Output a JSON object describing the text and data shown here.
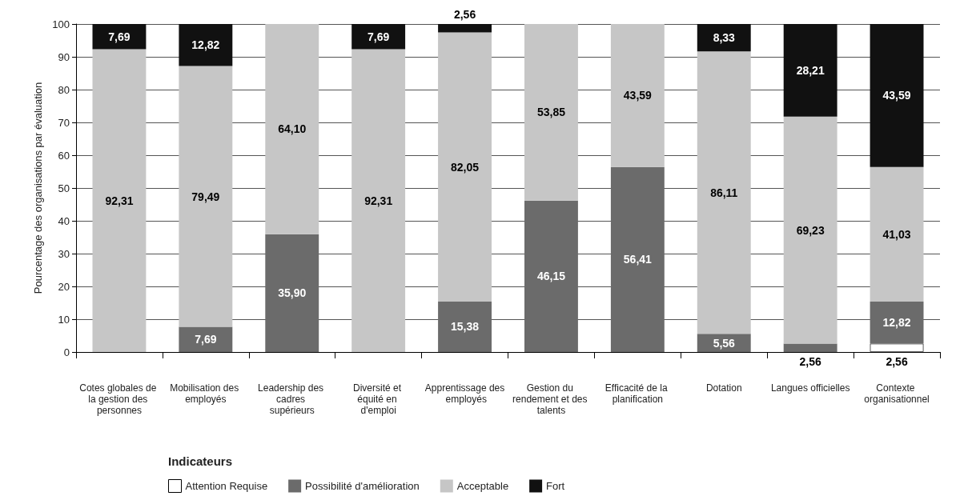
{
  "chart_data": {
    "type": "bar",
    "stacked": true,
    "ylabel": "Pourcentage des organisations par évaluation",
    "categories": [
      "Cotes globales de la gestion des personnes",
      "Mobilisation des employés",
      "Leadership des cadres supérieurs",
      "Diversité et équité en d'emploi",
      "Apprentissage des employés",
      "Gestion du rendement et des talents",
      "Efficacité de la planification",
      "Dotation",
      "Langues officielles",
      "Contexte organisationnel"
    ],
    "series": [
      {
        "name": "Attention Requise",
        "color": "#ffffff",
        "values": [
          0,
          0,
          0,
          0,
          0,
          0,
          0,
          0,
          0,
          2.56
        ],
        "value_labels": [
          null,
          null,
          null,
          null,
          null,
          null,
          null,
          null,
          null,
          "2,56"
        ]
      },
      {
        "name": "Possibilité d'amélioration",
        "color": "#6b6b6b",
        "values": [
          0,
          7.69,
          35.9,
          0,
          15.38,
          46.15,
          56.41,
          5.56,
          2.56,
          12.82
        ],
        "value_labels": [
          null,
          "7,69",
          "35,90",
          null,
          "15,38",
          "46,15",
          "56,41",
          "5,56",
          "2,56",
          "12,82"
        ]
      },
      {
        "name": "Acceptable",
        "color": "#c6c6c6",
        "values": [
          92.31,
          79.49,
          64.1,
          92.31,
          82.05,
          53.85,
          43.59,
          86.11,
          69.23,
          41.03
        ],
        "value_labels": [
          "92,31",
          "79,49",
          "64,10",
          "92,31",
          "82,05",
          "53,85",
          "43,59",
          "86,11",
          "69,23",
          "41,03"
        ]
      },
      {
        "name": "Fort",
        "color": "#111111",
        "values": [
          7.69,
          12.82,
          0,
          7.69,
          2.56,
          0,
          0,
          8.33,
          28.21,
          43.59
        ],
        "value_labels": [
          "7,69",
          "12,82",
          null,
          "7,69",
          "2,56",
          null,
          null,
          "8,33",
          "28,21",
          "43,59"
        ]
      }
    ],
    "ylim": [
      0,
      100
    ],
    "yticks": [
      0,
      10,
      20,
      30,
      40,
      50,
      60,
      70,
      80,
      90,
      100
    ],
    "grid": "y",
    "legend": "bottom",
    "legend_title": "Indicateurs"
  }
}
